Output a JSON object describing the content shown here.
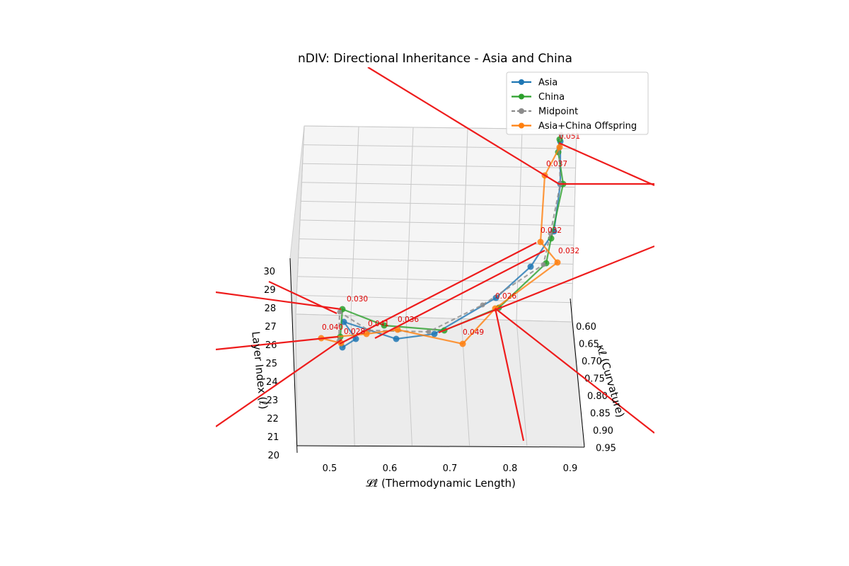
{
  "chart_data": {
    "type": "line",
    "projection": "3d",
    "title": "nDIV: Directional Inheritance - Asia and China",
    "xlabel": "𝓛ℓ (Thermodynamic Length)",
    "ylabel": "κℓ (Curvature)",
    "zlabel": "Layer Index (ℓ)",
    "xlim": [
      0.45,
      0.92
    ],
    "ylim": [
      0.58,
      0.95
    ],
    "zlim": [
      20,
      31
    ],
    "xticks": [
      "0.5",
      "0.6",
      "0.7",
      "0.8",
      "0.9"
    ],
    "yticks": [
      "0.60",
      "0.65",
      "0.70",
      "0.75",
      "0.80",
      "0.85",
      "0.90",
      "0.95"
    ],
    "zticks": [
      "20",
      "21",
      "22",
      "23",
      "24",
      "25",
      "26",
      "27",
      "28",
      "29",
      "30"
    ],
    "legend_position": "top-right",
    "grid": true,
    "series": [
      {
        "name": "Asia",
        "color": "#1f77b4",
        "style": "solid",
        "x": [
          0.526,
          0.535,
          0.545,
          0.612,
          0.68,
          0.775,
          0.835,
          0.87,
          0.88,
          0.885
        ],
        "y": [
          0.68,
          0.676,
          0.68,
          0.72,
          0.74,
          0.78,
          0.82,
          0.87,
          0.87,
          0.88
        ],
        "z": [
          21,
          22,
          23,
          24,
          25,
          26,
          27,
          28,
          29,
          30
        ]
      },
      {
        "name": "China",
        "color": "#2ca02c",
        "style": "solid",
        "x": [
          0.518,
          0.52,
          0.59,
          0.69,
          0.78,
          0.855,
          0.868,
          0.89,
          0.878,
          0.882
        ],
        "y": [
          0.64,
          0.69,
          0.7,
          0.72,
          0.78,
          0.82,
          0.87,
          0.87,
          0.88,
          0.88
        ],
        "z": [
          21,
          22,
          23,
          24,
          25,
          26,
          27,
          28,
          29,
          30
        ]
      },
      {
        "name": "Midpoint",
        "color": "#8c8c8c",
        "style": "dashed",
        "x": [
          0.52,
          0.528,
          0.567,
          0.651,
          0.73,
          0.845,
          0.866,
          0.887,
          0.879,
          0.883
        ],
        "y": [
          0.66,
          0.683,
          0.69,
          0.72,
          0.78,
          0.82,
          0.87,
          0.87,
          0.88,
          0.88
        ],
        "z": [
          21,
          22,
          23,
          24,
          25,
          26,
          27,
          28,
          29,
          30
        ]
      },
      {
        "name": "Asia+China Offspring",
        "color": "#ff7f0e",
        "style": "solid",
        "x": [
          0.52,
          0.485,
          0.56,
          0.612,
          0.718,
          0.772,
          0.878,
          0.848,
          0.858,
          0.878
        ],
        "y": [
          0.64,
          0.65,
          0.69,
          0.72,
          0.76,
          0.78,
          0.82,
          0.87,
          0.87,
          0.88
        ],
        "z": [
          21,
          22,
          23,
          24,
          25,
          26,
          27,
          28,
          29,
          30
        ]
      }
    ],
    "annotations": [
      "0.030",
      "0.040",
      "0.028",
      "0.041",
      "0.036",
      "0.049",
      "0.026",
      "0.032",
      "0.032",
      "0.037",
      "0.051"
    ]
  },
  "legend_line_style_note": "",
  "colors": {
    "arrow": "#ee1c1c",
    "annotation": "#e00000",
    "pane": "#f2f2f2",
    "grid": "#c0c0c0"
  }
}
